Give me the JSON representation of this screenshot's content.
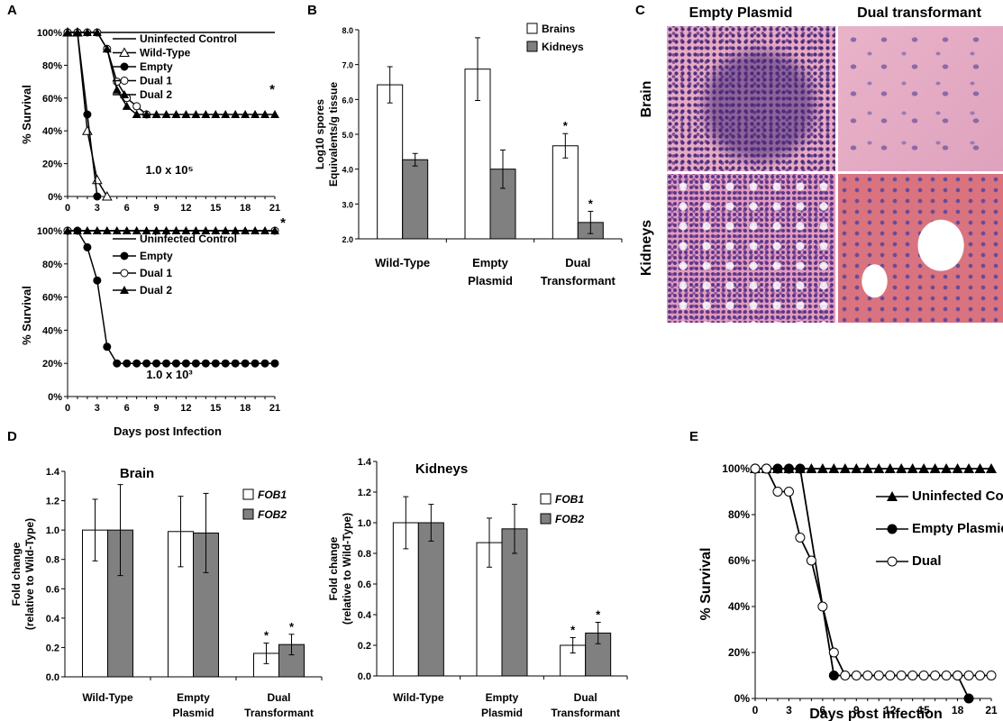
{
  "panel_letters": {
    "a": "A",
    "b": "B",
    "c": "C",
    "d": "D",
    "e": "E"
  },
  "colors": {
    "white_bar": "#ffffff",
    "gray_bar": "#808080",
    "line": "#000000",
    "tissue_pink": "#e3a7c3",
    "nuclei_purple": "#5b3a86",
    "tissue_red": "#d9707e"
  },
  "chart_data": [
    {
      "id": "A_top",
      "type": "line",
      "ylabel": "% Survival",
      "annotation": "1.0 x 10⁵",
      "star": "*",
      "x": [
        0,
        1,
        2,
        3,
        4,
        5,
        6,
        7,
        8,
        9,
        10,
        11,
        12,
        13,
        14,
        15,
        16,
        17,
        18,
        19,
        20,
        21
      ],
      "xticks": [
        0,
        3,
        6,
        9,
        12,
        15,
        18,
        21
      ],
      "xlim": [
        0,
        21
      ],
      "ylim": [
        0,
        100
      ],
      "yticks": [
        "0%",
        "20%",
        "40%",
        "60%",
        "80%",
        "100%"
      ],
      "legend": [
        "Uninfected Control",
        "Wild-Type",
        "Empty",
        "Dual 1",
        "Dual 2"
      ],
      "series": [
        {
          "name": "Uninfected Control",
          "marker": "none",
          "points": [
            [
              0,
              100
            ],
            [
              21,
              100
            ]
          ]
        },
        {
          "name": "Wild-Type",
          "marker": "open-triangle",
          "points": [
            [
              0,
              100
            ],
            [
              1,
              100
            ],
            [
              2,
              40
            ],
            [
              3,
              10
            ],
            [
              4,
              0
            ]
          ]
        },
        {
          "name": "Empty",
          "marker": "filled-circle",
          "points": [
            [
              0,
              100
            ],
            [
              1,
              100
            ],
            [
              2,
              50
            ],
            [
              3,
              0
            ]
          ]
        },
        {
          "name": "Dual 1",
          "marker": "open-circle",
          "points": [
            [
              0,
              100
            ],
            [
              1,
              100
            ],
            [
              2,
              100
            ],
            [
              3,
              100
            ],
            [
              4,
              90
            ],
            [
              5,
              70
            ],
            [
              6,
              60
            ],
            [
              7,
              55
            ],
            [
              8,
              50
            ]
          ]
        },
        {
          "name": "Dual 2",
          "marker": "filled-triangle",
          "points": [
            [
              0,
              100
            ],
            [
              1,
              100
            ],
            [
              2,
              100
            ],
            [
              3,
              100
            ],
            [
              4,
              90
            ],
            [
              5,
              65
            ],
            [
              6,
              55
            ],
            [
              7,
              50
            ],
            [
              8,
              50
            ],
            [
              9,
              50
            ],
            [
              10,
              50
            ],
            [
              11,
              50
            ],
            [
              12,
              50
            ],
            [
              13,
              50
            ],
            [
              14,
              50
            ],
            [
              15,
              50
            ],
            [
              16,
              50
            ],
            [
              17,
              50
            ],
            [
              18,
              50
            ],
            [
              19,
              50
            ],
            [
              20,
              50
            ],
            [
              21,
              50
            ]
          ]
        }
      ]
    },
    {
      "id": "A_bottom",
      "type": "line",
      "ylabel": "% Survival",
      "xlabel": "Days post Infection",
      "annotation": "1.0 x 10³",
      "star": "*",
      "xticks": [
        0,
        3,
        6,
        9,
        12,
        15,
        18,
        21
      ],
      "xlim": [
        0,
        21
      ],
      "ylim": [
        0,
        100
      ],
      "yticks": [
        "0%",
        "20%",
        "40%",
        "60%",
        "80%",
        "100%"
      ],
      "legend": [
        "Uninfected Control",
        "Empty",
        "Dual 1",
        "Dual 2"
      ],
      "series": [
        {
          "name": "Uninfected Control",
          "marker": "none",
          "points": [
            [
              0,
              100
            ],
            [
              21,
              100
            ]
          ]
        },
        {
          "name": "Empty",
          "marker": "filled-circle",
          "points": [
            [
              0,
              100
            ],
            [
              1,
              100
            ],
            [
              2,
              90
            ],
            [
              3,
              70
            ],
            [
              4,
              30
            ],
            [
              5,
              20
            ],
            [
              6,
              20
            ],
            [
              7,
              20
            ],
            [
              8,
              20
            ],
            [
              9,
              20
            ],
            [
              10,
              20
            ],
            [
              11,
              20
            ],
            [
              12,
              20
            ],
            [
              13,
              20
            ],
            [
              14,
              20
            ],
            [
              15,
              20
            ],
            [
              16,
              20
            ],
            [
              17,
              20
            ],
            [
              18,
              20
            ],
            [
              19,
              20
            ],
            [
              20,
              20
            ],
            [
              21,
              20
            ]
          ]
        },
        {
          "name": "Dual 1",
          "marker": "open-circle",
          "points": [
            [
              0,
              100
            ],
            [
              21,
              100
            ]
          ]
        },
        {
          "name": "Dual 2",
          "marker": "filled-triangle",
          "points": [
            [
              0,
              100
            ],
            [
              1,
              100
            ],
            [
              2,
              100
            ],
            [
              3,
              100
            ],
            [
              4,
              100
            ],
            [
              5,
              100
            ],
            [
              6,
              100
            ],
            [
              7,
              100
            ],
            [
              8,
              100
            ],
            [
              9,
              100
            ],
            [
              10,
              100
            ],
            [
              11,
              100
            ],
            [
              12,
              100
            ],
            [
              13,
              100
            ],
            [
              14,
              100
            ],
            [
              15,
              100
            ],
            [
              16,
              100
            ],
            [
              17,
              100
            ],
            [
              18,
              100
            ],
            [
              19,
              100
            ],
            [
              20,
              100
            ],
            [
              21,
              100
            ]
          ]
        }
      ]
    },
    {
      "id": "B",
      "type": "bar",
      "ylabel_lines": [
        "Log10 spores",
        "Equivalents/g tissue"
      ],
      "ylim": [
        2.0,
        8.0
      ],
      "yticks": [
        "2.0",
        "3.0",
        "4.0",
        "5.0",
        "6.0",
        "7.0",
        "8.0"
      ],
      "categories": [
        [
          "Wild-Type"
        ],
        [
          "Empty",
          "Plasmid"
        ],
        [
          "Dual",
          "Transformant"
        ]
      ],
      "series": [
        {
          "name": "Brains",
          "color": "#ffffff",
          "values": [
            6.42,
            6.87,
            4.67
          ],
          "errors": [
            0.52,
            0.9,
            0.35
          ],
          "stars": [
            "",
            "",
            "*"
          ]
        },
        {
          "name": "Kidneys",
          "color": "#808080",
          "values": [
            4.27,
            4.0,
            2.47
          ],
          "errors": [
            0.18,
            0.55,
            0.32
          ],
          "stars": [
            "",
            "",
            "*"
          ]
        }
      ]
    },
    {
      "id": "D_brain",
      "type": "bar",
      "title": "Brain",
      "ylabel_lines": [
        "Fold change",
        "(relative to Wild-Type)"
      ],
      "ylim": [
        0,
        1.4
      ],
      "yticks": [
        "0.0",
        "0.2",
        "0.4",
        "0.6",
        "0.8",
        "1.0",
        "1.2",
        "1.4"
      ],
      "categories": [
        [
          "Wild-Type"
        ],
        [
          "Empty",
          "Plasmid"
        ],
        [
          "Dual",
          "Transformant"
        ]
      ],
      "series": [
        {
          "name": "FOB1",
          "color": "#ffffff",
          "values": [
            1.0,
            0.99,
            0.16
          ],
          "errors": [
            0.21,
            0.24,
            0.07
          ],
          "stars": [
            "",
            "",
            "*"
          ]
        },
        {
          "name": "FOB2",
          "color": "#808080",
          "values": [
            1.0,
            0.98,
            0.22
          ],
          "errors": [
            0.31,
            0.27,
            0.07
          ],
          "stars": [
            "",
            "",
            "*"
          ]
        }
      ]
    },
    {
      "id": "D_kidneys",
      "type": "bar",
      "title": "Kidneys",
      "ylabel_lines": [
        "Fold change",
        "(relative to Wild-Type)"
      ],
      "ylim": [
        0,
        1.4
      ],
      "yticks": [
        "0.0",
        "0.2",
        "0.4",
        "0.6",
        "0.8",
        "1.0",
        "1.2",
        "1.4"
      ],
      "categories": [
        [
          "Wild-Type"
        ],
        [
          "Empty",
          "Plasmid"
        ],
        [
          "Dual",
          "Transformant"
        ]
      ],
      "series": [
        {
          "name": "FOB1",
          "color": "#ffffff",
          "values": [
            1.0,
            0.87,
            0.2
          ],
          "errors": [
            0.17,
            0.16,
            0.05
          ],
          "stars": [
            "",
            "",
            "*"
          ]
        },
        {
          "name": "FOB2",
          "color": "#808080",
          "values": [
            1.0,
            0.96,
            0.28
          ],
          "errors": [
            0.12,
            0.16,
            0.07
          ],
          "stars": [
            "",
            "",
            "*"
          ]
        }
      ]
    },
    {
      "id": "E",
      "type": "line",
      "ylabel": "% Survival",
      "xlabel": "Days post infection",
      "xticks": [
        0,
        3,
        6,
        9,
        12,
        15,
        18,
        21
      ],
      "xlim": [
        0,
        21
      ],
      "ylim": [
        0,
        100
      ],
      "yticks": [
        "0%",
        "20%",
        "40%",
        "60%",
        "80%",
        "100%"
      ],
      "legend": [
        "Uninfected Control",
        "Empty Plasmid",
        "Dual"
      ],
      "series": [
        {
          "name": "Uninfected Control",
          "marker": "filled-triangle",
          "points": [
            [
              0,
              100
            ],
            [
              1,
              100
            ],
            [
              2,
              100
            ],
            [
              3,
              100
            ],
            [
              4,
              100
            ],
            [
              5,
              100
            ],
            [
              6,
              100
            ],
            [
              7,
              100
            ],
            [
              8,
              100
            ],
            [
              9,
              100
            ],
            [
              10,
              100
            ],
            [
              11,
              100
            ],
            [
              12,
              100
            ],
            [
              13,
              100
            ],
            [
              14,
              100
            ],
            [
              15,
              100
            ],
            [
              16,
              100
            ],
            [
              17,
              100
            ],
            [
              18,
              100
            ],
            [
              19,
              100
            ],
            [
              20,
              100
            ],
            [
              21,
              100
            ]
          ]
        },
        {
          "name": "Empty Plasmid",
          "marker": "filled-circle",
          "points": [
            [
              0,
              100
            ],
            [
              1,
              100
            ],
            [
              2,
              100
            ],
            [
              3,
              100
            ],
            [
              4,
              100
            ],
            [
              7,
              10
            ],
            [
              18,
              10
            ],
            [
              19,
              0
            ]
          ]
        },
        {
          "name": "Dual",
          "marker": "open-circle",
          "points": [
            [
              0,
              100
            ],
            [
              1,
              100
            ],
            [
              2,
              90
            ],
            [
              3,
              90
            ],
            [
              4,
              70
            ],
            [
              5,
              60
            ],
            [
              6,
              40
            ],
            [
              7,
              20
            ],
            [
              8,
              10
            ],
            [
              9,
              10
            ],
            [
              10,
              10
            ],
            [
              11,
              10
            ],
            [
              12,
              10
            ],
            [
              13,
              10
            ],
            [
              14,
              10
            ],
            [
              15,
              10
            ],
            [
              16,
              10
            ],
            [
              17,
              10
            ],
            [
              18,
              10
            ],
            [
              19,
              10
            ],
            [
              20,
              10
            ],
            [
              21,
              10
            ]
          ]
        }
      ]
    }
  ],
  "histology": {
    "col_labels": [
      "Empty Plasmid",
      "Dual transformant"
    ],
    "row_labels": [
      "Brain",
      "Kidneys"
    ]
  }
}
